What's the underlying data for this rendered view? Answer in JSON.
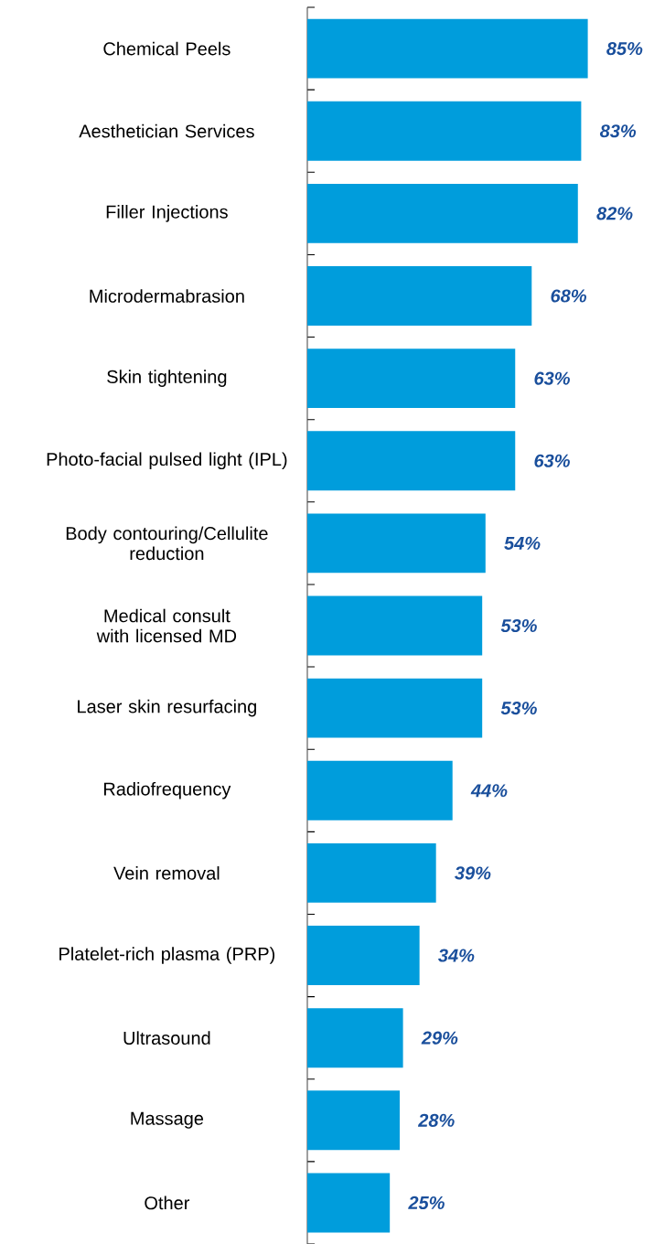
{
  "chart_data": {
    "type": "bar",
    "orientation": "horizontal",
    "categories": [
      "Chemical Peels",
      "Aesthetician Services",
      "Filler Injections",
      "Microdermabrasion",
      "Skin tightening",
      "Photo-facial pulsed light (IPL)",
      "Body contouring/Cellulite reduction",
      "Medical consult with licensed MD",
      "Laser skin resurfacing",
      "Radiofrequency",
      "Vein removal",
      "Platelet-rich plasma (PRP)",
      "Ultrasound",
      "Massage",
      "Other"
    ],
    "values": [
      85,
      83,
      82,
      68,
      63,
      63,
      54,
      53,
      53,
      44,
      39,
      34,
      29,
      28,
      25
    ],
    "value_labels": [
      "85%",
      "83%",
      "82%",
      "68%",
      "63%",
      "63%",
      "54%",
      "53%",
      "53%",
      "44%",
      "39%",
      "34%",
      "29%",
      "28%",
      "25%"
    ],
    "color": "#009ddc"
  }
}
